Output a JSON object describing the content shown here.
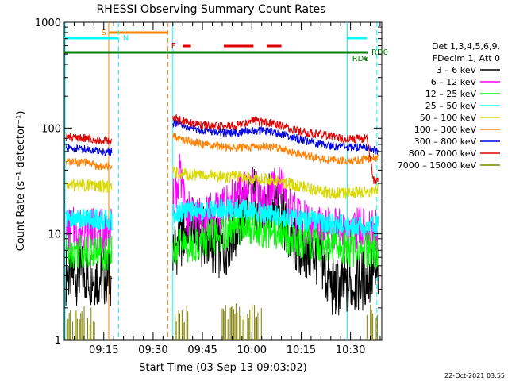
{
  "chart_data": {
    "type": "line",
    "title": "RHESSI Observing Summary Count Rates",
    "xlabel": "Start Time (03-Sep-13 09:03:02)",
    "ylabel": "Count Rate (s⁻¹ detector⁻¹)",
    "yscale": "log",
    "ylim": [
      1,
      1000
    ],
    "xlim_minutes": [
      0,
      96.5
    ],
    "x_ticks": [
      {
        "label": "09:15",
        "minute": 12
      },
      {
        "label": "09:30",
        "minute": 27
      },
      {
        "label": "09:45",
        "minute": 42
      },
      {
        "label": "10:00",
        "minute": 57
      },
      {
        "label": "10:15",
        "minute": 72
      },
      {
        "label": "10:30",
        "minute": 87
      }
    ],
    "y_ticks": [
      {
        "label": "1",
        "value": 1
      },
      {
        "label": "10",
        "value": 10
      },
      {
        "label": "100",
        "value": 100
      },
      {
        "label": "1000",
        "value": 1000
      }
    ],
    "legend_header": [
      "Det 1,3,4,5,6,9,",
      "FDecim 1, Att 0"
    ],
    "series": [
      {
        "name": "3 – 6 keV",
        "color": "#000000",
        "x": [
          0.5,
          7,
          11,
          14.5,
          33,
          38,
          43,
          48,
          52,
          55,
          57.5,
          60,
          62.5,
          65,
          68,
          72,
          78,
          80,
          82,
          85,
          88,
          92,
          95.5
        ],
        "y": [
          4.2,
          4.2,
          4.0,
          4.0,
          7,
          12,
          9,
          7,
          11,
          17,
          25,
          13,
          20,
          23,
          9,
          7,
          6,
          3.6,
          3.0,
          3.2,
          3.4,
          3.8,
          4.2
        ]
      },
      {
        "name": "6 – 12 keV",
        "color": "#ff00ff",
        "x": [
          0.5,
          7,
          11,
          14.5,
          33,
          35,
          37,
          40,
          44,
          48,
          52,
          55,
          57.5,
          60,
          62.5,
          65,
          68,
          72,
          78,
          84,
          90,
          95.5
        ],
        "y": [
          11,
          11,
          10.5,
          10.5,
          20,
          35,
          16,
          14,
          15,
          17,
          21,
          25,
          29,
          17,
          24,
          31,
          17,
          14,
          11,
          10.5,
          11,
          11
        ]
      },
      {
        "name": "12 – 25 keV",
        "color": "#00ff00",
        "x": [
          0.5,
          7,
          11,
          14.5,
          33,
          40,
          48,
          55,
          60,
          65,
          72,
          80,
          88,
          95.5
        ],
        "y": [
          7,
          7,
          6.8,
          6.8,
          7.5,
          8,
          10,
          12,
          11,
          10,
          8.5,
          7.8,
          7.2,
          7
        ]
      },
      {
        "name": "25 – 50 keV",
        "color": "#00ffff",
        "x": [
          0.5,
          7,
          11,
          14.5,
          33,
          40,
          48,
          55,
          60,
          65,
          72,
          80,
          88,
          95.5
        ],
        "y": [
          14,
          14,
          13.5,
          13.5,
          16,
          16.5,
          17,
          17,
          16,
          15,
          13.5,
          12.5,
          12,
          12
        ]
      },
      {
        "name": "50 – 100 keV",
        "color": "#d8d800",
        "x": [
          0.5,
          7,
          11,
          14.5,
          33,
          40,
          48,
          55,
          62,
          70,
          78,
          85,
          92,
          95.5
        ],
        "y": [
          29,
          29,
          28,
          28,
          38,
          36,
          35,
          34,
          33,
          29,
          25,
          24,
          25,
          27
        ]
      },
      {
        "name": "100 – 300 keV",
        "color": "#ff8000",
        "x": [
          0.5,
          7,
          11,
          14.5,
          33,
          38,
          45,
          52,
          57,
          62,
          66,
          72,
          80,
          86,
          92,
          95.5
        ],
        "y": [
          48,
          47,
          43,
          43,
          83,
          75,
          68,
          65,
          66,
          67,
          64,
          56,
          50,
          49,
          51,
          53
        ]
      },
      {
        "name": "300 – 800 keV",
        "color": "#0000e0",
        "x": [
          0.5,
          7,
          11,
          14.5,
          33,
          38,
          45,
          52,
          57,
          62,
          66,
          72,
          80,
          86,
          92,
          95.5
        ],
        "y": [
          65,
          63,
          60,
          60,
          112,
          100,
          92,
          90,
          95,
          93,
          88,
          78,
          68,
          66,
          66,
          60
        ]
      },
      {
        "name": "800 – 7000 keV",
        "color": "#e00000",
        "x": [
          0.5,
          7,
          11,
          14.5,
          33,
          38,
          45,
          52,
          57,
          62,
          66,
          72,
          80,
          86,
          92,
          94,
          95.5
        ],
        "y": [
          82,
          80,
          76,
          76,
          125,
          112,
          103,
          105,
          118,
          112,
          105,
          92,
          85,
          78,
          80,
          32,
          32
        ]
      },
      {
        "name": "7000 – 15000 keV",
        "color": "#808000",
        "x": [],
        "y": []
      }
    ],
    "annotations": {
      "saa_label": "S",
      "night_label": "N",
      "flare_label": "F",
      "rd0_label": "RD0",
      "rd6_label": "RD6"
    }
  },
  "timestamp": "22-Oct-2021 03:55"
}
